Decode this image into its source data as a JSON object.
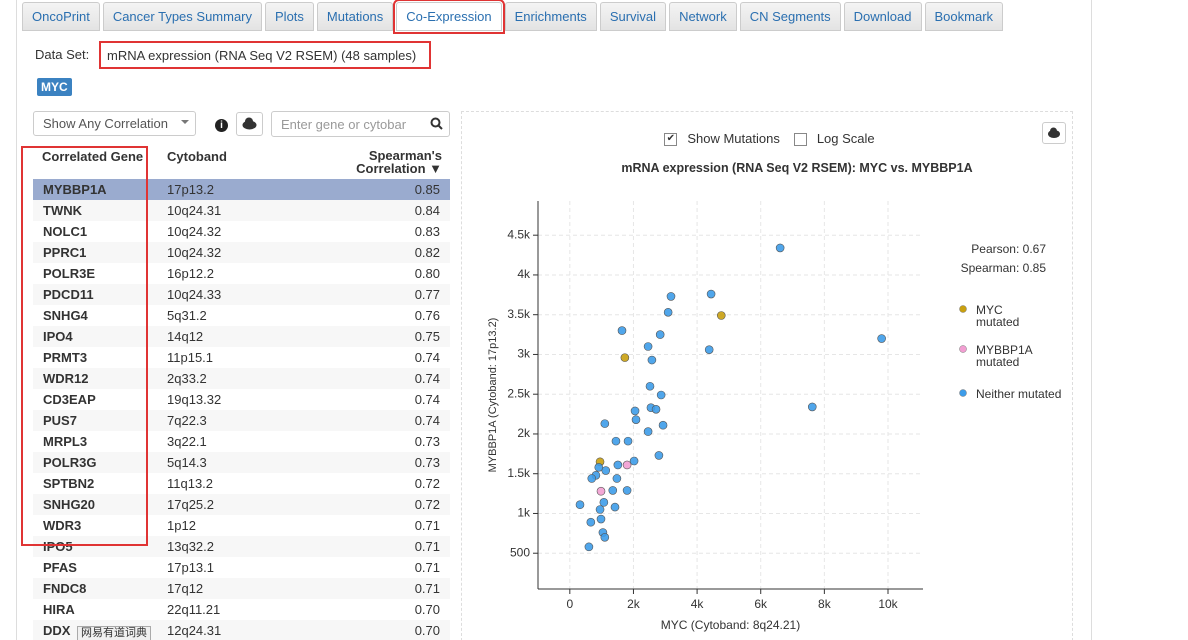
{
  "tabs": [
    "OncoPrint",
    "Cancer Types Summary",
    "Plots",
    "Mutations",
    "Co-Expression",
    "Enrichments",
    "Survival",
    "Network",
    "CN Segments",
    "Download",
    "Bookmark"
  ],
  "active_tab": "Co-Expression",
  "dataset": {
    "label": "Data Set:",
    "value": "mRNA expression (RNA Seq V2 RSEM) (48 samples)"
  },
  "gene_tag": "MYC",
  "filter": "Show Any Correlation",
  "search_placeholder": "Enter gene or cytobar",
  "table": {
    "headers": [
      "Correlated Gene",
      "Cytoband",
      "Spearman's Correlation ▼"
    ],
    "rows": [
      [
        "MYBBP1A",
        "17p13.2",
        "0.85"
      ],
      [
        "TWNK",
        "10q24.31",
        "0.84"
      ],
      [
        "NOLC1",
        "10q24.32",
        "0.83"
      ],
      [
        "PPRC1",
        "10q24.32",
        "0.82"
      ],
      [
        "POLR3E",
        "16p12.2",
        "0.80"
      ],
      [
        "PDCD11",
        "10q24.33",
        "0.77"
      ],
      [
        "SNHG4",
        "5q31.2",
        "0.76"
      ],
      [
        "IPO4",
        "14q12",
        "0.75"
      ],
      [
        "PRMT3",
        "11p15.1",
        "0.74"
      ],
      [
        "WDR12",
        "2q33.2",
        "0.74"
      ],
      [
        "CD3EAP",
        "19q13.32",
        "0.74"
      ],
      [
        "PUS7",
        "7q22.3",
        "0.74"
      ],
      [
        "MRPL3",
        "3q22.1",
        "0.73"
      ],
      [
        "POLR3G",
        "5q14.3",
        "0.73"
      ],
      [
        "SPTBN2",
        "11q13.2",
        "0.72"
      ],
      [
        "SNHG20",
        "17q25.2",
        "0.72"
      ],
      [
        "WDR3",
        "1p12",
        "0.71"
      ],
      [
        "IPO5",
        "13q32.2",
        "0.71"
      ],
      [
        "PFAS",
        "17p13.1",
        "0.71"
      ],
      [
        "FNDC8",
        "17q12",
        "0.71"
      ],
      [
        "HIRA",
        "22q11.21",
        "0.70"
      ],
      [
        "DDX",
        "12q24.31",
        "0.70"
      ]
    ]
  },
  "tooltip": "网易有道词典",
  "chart_data": {
    "type": "scatter",
    "title": "mRNA expression (RNA Seq V2 RSEM): MYC vs. MYBBP1A",
    "show_mutations": {
      "label": "Show Mutations",
      "checked": true
    },
    "log_scale": {
      "label": "Log Scale",
      "checked": false
    },
    "stats": [
      "Pearson: 0.67",
      "Spearman: 0.85"
    ],
    "x_label": "MYC (Cytoband: 8q24.21)",
    "y_label": "MYBBP1A (Cytoband: 17p13.2)",
    "xlim": [
      -1000,
      11100
    ],
    "ylim": [
      50,
      4930
    ],
    "grid": true,
    "xticks": [
      0,
      {
        "value": 2000,
        "label": "2k"
      },
      {
        "value": 4000,
        "label": "4k"
      },
      {
        "value": 6000,
        "label": "6k"
      },
      {
        "value": 8000,
        "label": "8k"
      },
      {
        "value": 10000,
        "label": "10k"
      }
    ],
    "yticks": [
      500,
      {
        "value": 1000,
        "label": "1k"
      },
      {
        "value": 1500,
        "label": "1.5k"
      },
      {
        "value": 2000,
        "label": "2k"
      },
      {
        "value": 2500,
        "label": "2.5k"
      },
      {
        "value": 3000,
        "label": "3k"
      },
      {
        "value": 3500,
        "label": "3.5k"
      },
      {
        "value": 4000,
        "label": "4k"
      },
      {
        "value": 4500,
        "label": "4.5k"
      }
    ],
    "series": [
      {
        "name": "MYC mutated",
        "color": "#c9a00f",
        "x": [
          4760,
          1730,
          950
        ],
        "values": [
          3490,
          2960,
          1650
        ]
      },
      {
        "name": "MYBBP1A mutated",
        "color": "#f29ed2",
        "x": [
          1800,
          980
        ],
        "values": [
          1610,
          1280
        ]
      },
      {
        "name": "Neither mutated",
        "color": "#3d9ce9",
        "x": [
          6610,
          4440,
          9800,
          7620,
          3180,
          3090,
          1640,
          2840,
          2460,
          4380,
          2580,
          2520,
          2870,
          2550,
          2710,
          2050,
          2080,
          1100,
          2930,
          2460,
          1450,
          1830,
          2800,
          2020,
          1510,
          1130,
          910,
          820,
          690,
          1480,
          1350,
          1800,
          320,
          1070,
          1420,
          950,
          980,
          660,
          1040,
          1100,
          600
        ],
        "values": [
          4340,
          3760,
          3200,
          2340,
          3730,
          3530,
          3300,
          3250,
          3100,
          3060,
          2930,
          2600,
          2490,
          2330,
          2310,
          2290,
          2180,
          2130,
          2110,
          2030,
          1910,
          1910,
          1730,
          1660,
          1610,
          1540,
          1580,
          1480,
          1440,
          1440,
          1290,
          1290,
          1110,
          1140,
          1080,
          1050,
          930,
          890,
          760,
          700,
          580
        ]
      }
    ]
  }
}
